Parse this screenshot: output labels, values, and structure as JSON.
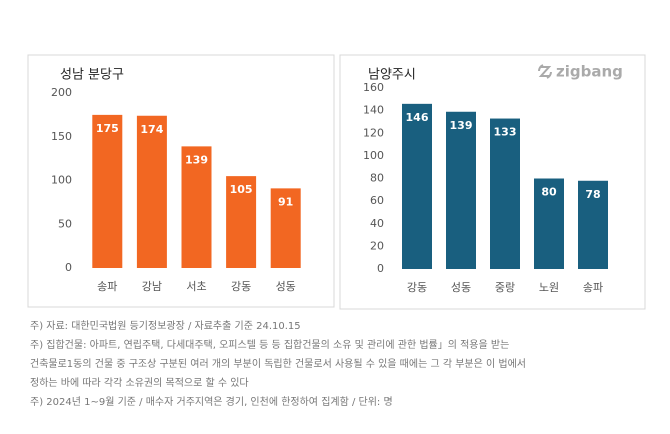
{
  "chart_data": [
    {
      "type": "bar",
      "title": "성남 분당구",
      "categories": [
        "송파",
        "강남",
        "서초",
        "강동",
        "성동"
      ],
      "values": [
        175,
        174,
        139,
        105,
        91
      ],
      "color": "#f26722",
      "ylim": [
        0,
        200
      ],
      "yticks": [
        0,
        50,
        100,
        150,
        200
      ],
      "grid": false
    },
    {
      "type": "bar",
      "title": "남양주시",
      "watermark": "zigbang",
      "categories": [
        "강동",
        "성동",
        "중랑",
        "노원",
        "송파"
      ],
      "values": [
        146,
        139,
        133,
        80,
        78
      ],
      "color": "#195f7f",
      "ylim": [
        0,
        160
      ],
      "yticks": [
        0,
        20,
        40,
        60,
        80,
        100,
        120,
        140,
        160
      ],
      "grid": false
    }
  ],
  "notes": [
    "주) 자료: 대한민국법원 등기정보광장 / 자료추출 기준 24.10.15",
    "주) 집합건물: 아파트, 연립주택, 다세대주택, 오피스텔 등 등  집합건물의 소유 및 관리에 관한 법률」의 적용을 받는",
    "건축물로1동의 건물 중 구조상 구분된 여러 개의 부분이 독립한 건물로서 사용될 수 있을 때에는 그 각 부분은 이 법에서",
    "정하는 바에 따라 각각 소유권의 목적으로 할 수 있다",
    "주) 2024년 1~9월 기준 / 매수자 거주지역은 경기, 인천에 한정하여 집계함 / 단위: 명"
  ]
}
